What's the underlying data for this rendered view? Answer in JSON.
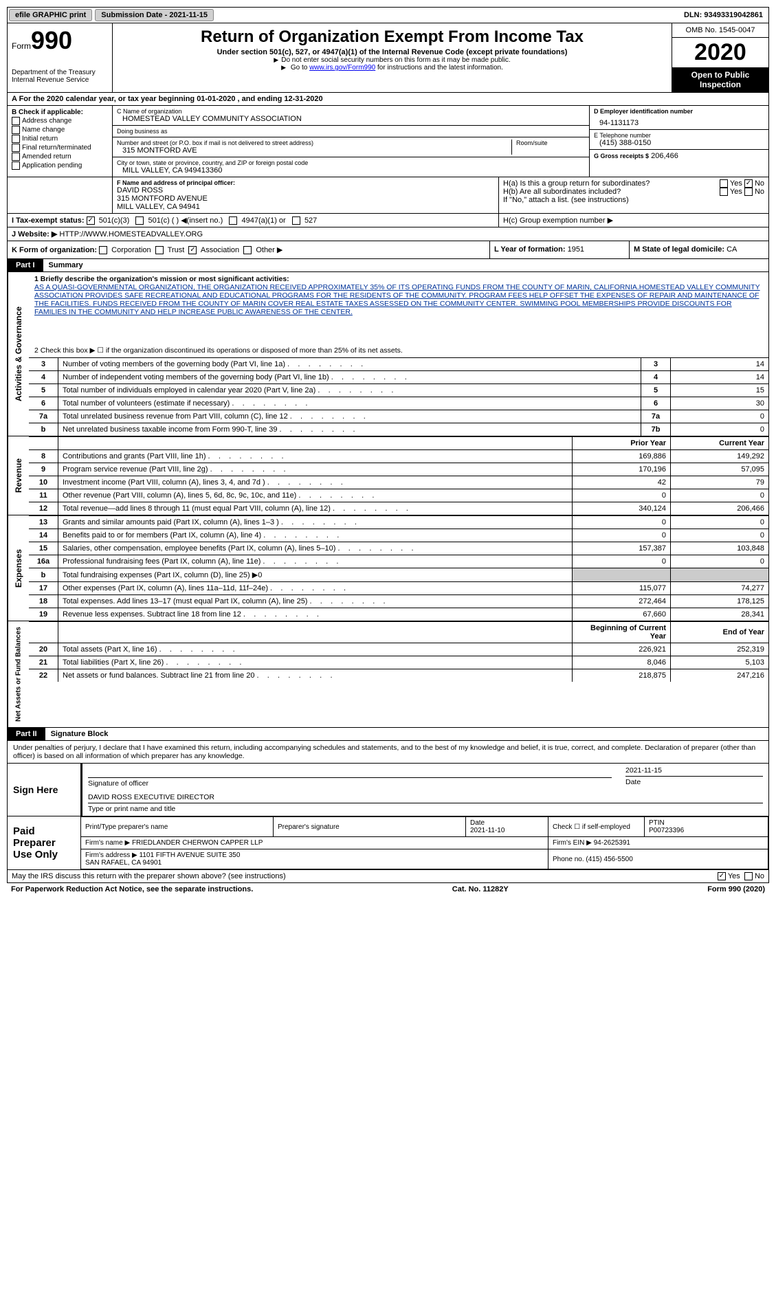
{
  "topbar": {
    "efile": "efile GRAPHIC print",
    "submission_label": "Submission Date - ",
    "submission_date": "2021-11-15",
    "dln_label": "DLN: ",
    "dln": "93493319042861"
  },
  "header": {
    "form_label": "Form",
    "form_number": "990",
    "dept": "Department of the Treasury\nInternal Revenue Service",
    "title": "Return of Organization Exempt From Income Tax",
    "subtitle": "Under section 501(c), 527, or 4947(a)(1) of the Internal Revenue Code (except private foundations)",
    "note1": "Do not enter social security numbers on this form as it may be made public.",
    "note2_pre": "Go to ",
    "note2_link": "www.irs.gov/Form990",
    "note2_post": " for instructions and the latest information.",
    "omb": "OMB No. 1545-0047",
    "year": "2020",
    "open_public": "Open to Public Inspection"
  },
  "row_a": "A For the 2020 calendar year, or tax year beginning 01-01-2020   , and ending 12-31-2020",
  "section_b": {
    "title": "B Check if applicable:",
    "items": [
      "Address change",
      "Name change",
      "Initial return",
      "Final return/terminated",
      "Amended return",
      "Application pending"
    ]
  },
  "section_c": {
    "name_label": "C Name of organization",
    "name": "HOMESTEAD VALLEY COMMUNITY ASSOCIATION",
    "dba_label": "Doing business as",
    "dba": "",
    "addr_label": "Number and street (or P.O. box if mail is not delivered to street address)",
    "room_label": "Room/suite",
    "addr": "315 MONTFORD AVE",
    "city_label": "City or town, state or province, country, and ZIP or foreign postal code",
    "city": "MILL VALLEY, CA  949413360"
  },
  "section_d": {
    "label": "D Employer identification number",
    "value": "94-1131173"
  },
  "section_e": {
    "label": "E Telephone number",
    "value": "(415) 388-0150"
  },
  "section_g": {
    "label": "G Gross receipts $",
    "value": "206,466"
  },
  "section_f": {
    "label": "F  Name and address of principal officer:",
    "name": "DAVID ROSS",
    "addr1": "315 MONTFORD AVENUE",
    "addr2": "MILL VALLEY, CA  94941"
  },
  "section_h": {
    "ha_label": "H(a)  Is this a group return for subordinates?",
    "ha_yes": "Yes",
    "ha_no": "No",
    "hb_label": "H(b)  Are all subordinates included?",
    "hb_note": "If \"No,\" attach a list. (see instructions)",
    "hc_label": "H(c)  Group exemption number ▶"
  },
  "section_i": {
    "label": "I   Tax-exempt status:",
    "opt1": "501(c)(3)",
    "opt2": "501(c) (  ) ◀(insert no.)",
    "opt3": "4947(a)(1) or",
    "opt4": "527"
  },
  "section_j": {
    "label": "J   Website: ▶",
    "value": "HTTP://WWW.HOMESTEADVALLEY.ORG"
  },
  "section_k": {
    "label": "K Form of organization:",
    "opts": [
      "Corporation",
      "Trust",
      "Association",
      "Other ▶"
    ],
    "checked": 2
  },
  "section_l": {
    "label": "L Year of formation:",
    "value": "1951"
  },
  "section_m": {
    "label": "M State of legal domicile:",
    "value": "CA"
  },
  "part1": {
    "label": "Part I",
    "title": "Summary"
  },
  "activities": {
    "vert": "Activities & Governance",
    "line1_label": "1   Briefly describe the organization's mission or most significant activities:",
    "line1_text": "AS A QUASI-GOVERNMENTAL ORGANIZATION, THE ORGANIZATION RECEIVED APPROXIMATELY 35% OF ITS OPERATING FUNDS FROM THE COUNTY OF MARIN, CALIFORNIA.HOMESTEAD VALLEY COMMUNITY ASSOCIATION PROVIDES SAFE RECREATIONAL AND EDUCATIONAL PROGRAMS FOR THE RESIDENTS OF THE COMMUNITY. PROGRAM FEES HELP OFFSET THE EXPENSES OF REPAIR AND MAINTENANCE OF THE FACILITIES. FUNDS RECEIVED FROM THE COUNTY OF MARIN COVER REAL ESTATE TAXES ASSESSED ON THE COMMUNITY CENTER. SWIMMING POOL MEMBERSHIPS PROVIDE DISCOUNTS FOR FAMILIES IN THE COMMUNITY AND HELP INCREASE PUBLIC AWARENESS OF THE CENTER.",
    "line2": "2   Check this box ▶ ☐  if the organization discontinued its operations or disposed of more than 25% of its net assets.",
    "rows": [
      {
        "n": "3",
        "label": "Number of voting members of the governing body (Part VI, line 1a)",
        "nlabel": "3",
        "v": "14"
      },
      {
        "n": "4",
        "label": "Number of independent voting members of the governing body (Part VI, line 1b)",
        "nlabel": "4",
        "v": "14"
      },
      {
        "n": "5",
        "label": "Total number of individuals employed in calendar year 2020 (Part V, line 2a)",
        "nlabel": "5",
        "v": "15"
      },
      {
        "n": "6",
        "label": "Total number of volunteers (estimate if necessary)",
        "nlabel": "6",
        "v": "30"
      },
      {
        "n": "7a",
        "label": "Total unrelated business revenue from Part VIII, column (C), line 12",
        "nlabel": "7a",
        "v": "0"
      },
      {
        "n": "b",
        "label": "Net unrelated business taxable income from Form 990-T, line 39",
        "nlabel": "7b",
        "v": "0"
      }
    ]
  },
  "revenue": {
    "vert": "Revenue",
    "prior": "Prior Year",
    "current": "Current Year",
    "rows": [
      {
        "n": "8",
        "label": "Contributions and grants (Part VIII, line 1h)",
        "prior": "169,886",
        "current": "149,292"
      },
      {
        "n": "9",
        "label": "Program service revenue (Part VIII, line 2g)",
        "prior": "170,196",
        "current": "57,095"
      },
      {
        "n": "10",
        "label": "Investment income (Part VIII, column (A), lines 3, 4, and 7d )",
        "prior": "42",
        "current": "79"
      },
      {
        "n": "11",
        "label": "Other revenue (Part VIII, column (A), lines 5, 6d, 8c, 9c, 10c, and 11e)",
        "prior": "0",
        "current": "0"
      },
      {
        "n": "12",
        "label": "Total revenue—add lines 8 through 11 (must equal Part VIII, column (A), line 12)",
        "prior": "340,124",
        "current": "206,466"
      }
    ]
  },
  "expenses": {
    "vert": "Expenses",
    "rows": [
      {
        "n": "13",
        "label": "Grants and similar amounts paid (Part IX, column (A), lines 1–3 )",
        "prior": "0",
        "current": "0"
      },
      {
        "n": "14",
        "label": "Benefits paid to or for members (Part IX, column (A), line 4)",
        "prior": "0",
        "current": "0"
      },
      {
        "n": "15",
        "label": "Salaries, other compensation, employee benefits (Part IX, column (A), lines 5–10)",
        "prior": "157,387",
        "current": "103,848"
      },
      {
        "n": "16a",
        "label": "Professional fundraising fees (Part IX, column (A), line 11e)",
        "prior": "0",
        "current": "0"
      },
      {
        "n": "b",
        "label": "Total fundraising expenses (Part IX, column (D), line 25) ▶0",
        "prior": "",
        "current": "",
        "shaded": true
      },
      {
        "n": "17",
        "label": "Other expenses (Part IX, column (A), lines 11a–11d, 11f–24e)",
        "prior": "115,077",
        "current": "74,277"
      },
      {
        "n": "18",
        "label": "Total expenses. Add lines 13–17 (must equal Part IX, column (A), line 25)",
        "prior": "272,464",
        "current": "178,125"
      },
      {
        "n": "19",
        "label": "Revenue less expenses. Subtract line 18 from line 12",
        "prior": "67,660",
        "current": "28,341"
      }
    ]
  },
  "netassets": {
    "vert": "Net Assets or Fund Balances",
    "begin": "Beginning of Current Year",
    "end": "End of Year",
    "rows": [
      {
        "n": "20",
        "label": "Total assets (Part X, line 16)",
        "prior": "226,921",
        "current": "252,319"
      },
      {
        "n": "21",
        "label": "Total liabilities (Part X, line 26)",
        "prior": "8,046",
        "current": "5,103"
      },
      {
        "n": "22",
        "label": "Net assets or fund balances. Subtract line 21 from line 20",
        "prior": "218,875",
        "current": "247,216"
      }
    ]
  },
  "part2": {
    "label": "Part II",
    "title": "Signature Block"
  },
  "sig": {
    "declaration": "Under penalties of perjury, I declare that I have examined this return, including accompanying schedules and statements, and to the best of my knowledge and belief, it is true, correct, and complete. Declaration of preparer (other than officer) is based on all information of which preparer has any knowledge.",
    "sign_here": "Sign Here",
    "sig_officer": "Signature of officer",
    "sig_date": "2021-11-15",
    "date_label": "Date",
    "officer_name": "DAVID ROSS  EXECUTIVE DIRECTOR",
    "officer_type": "Type or print name and title"
  },
  "paid_prep": {
    "title": "Paid Preparer Use Only",
    "print_label": "Print/Type preparer's name",
    "sig_label": "Preparer's signature",
    "date_label": "Date",
    "date": "2021-11-10",
    "check_label": "Check ☐ if self-employed",
    "ptin_label": "PTIN",
    "ptin": "P00723396",
    "firm_name_label": "Firm's name    ▶",
    "firm_name": "FRIEDLANDER CHERWON CAPPER LLP",
    "firm_ein_label": "Firm's EIN ▶",
    "firm_ein": "94-2625391",
    "firm_addr_label": "Firm's address ▶",
    "firm_addr": "1101 FIFTH AVENUE SUITE 350\nSAN RAFAEL, CA  94901",
    "phone_label": "Phone no.",
    "phone": "(415) 456-5500"
  },
  "footer": {
    "discuss": "May the IRS discuss this return with the preparer shown above? (see instructions)",
    "yes": "Yes",
    "no": "No",
    "paperwork": "For Paperwork Reduction Act Notice, see the separate instructions.",
    "cat": "Cat. No. 11282Y",
    "form": "Form 990 (2020)"
  }
}
